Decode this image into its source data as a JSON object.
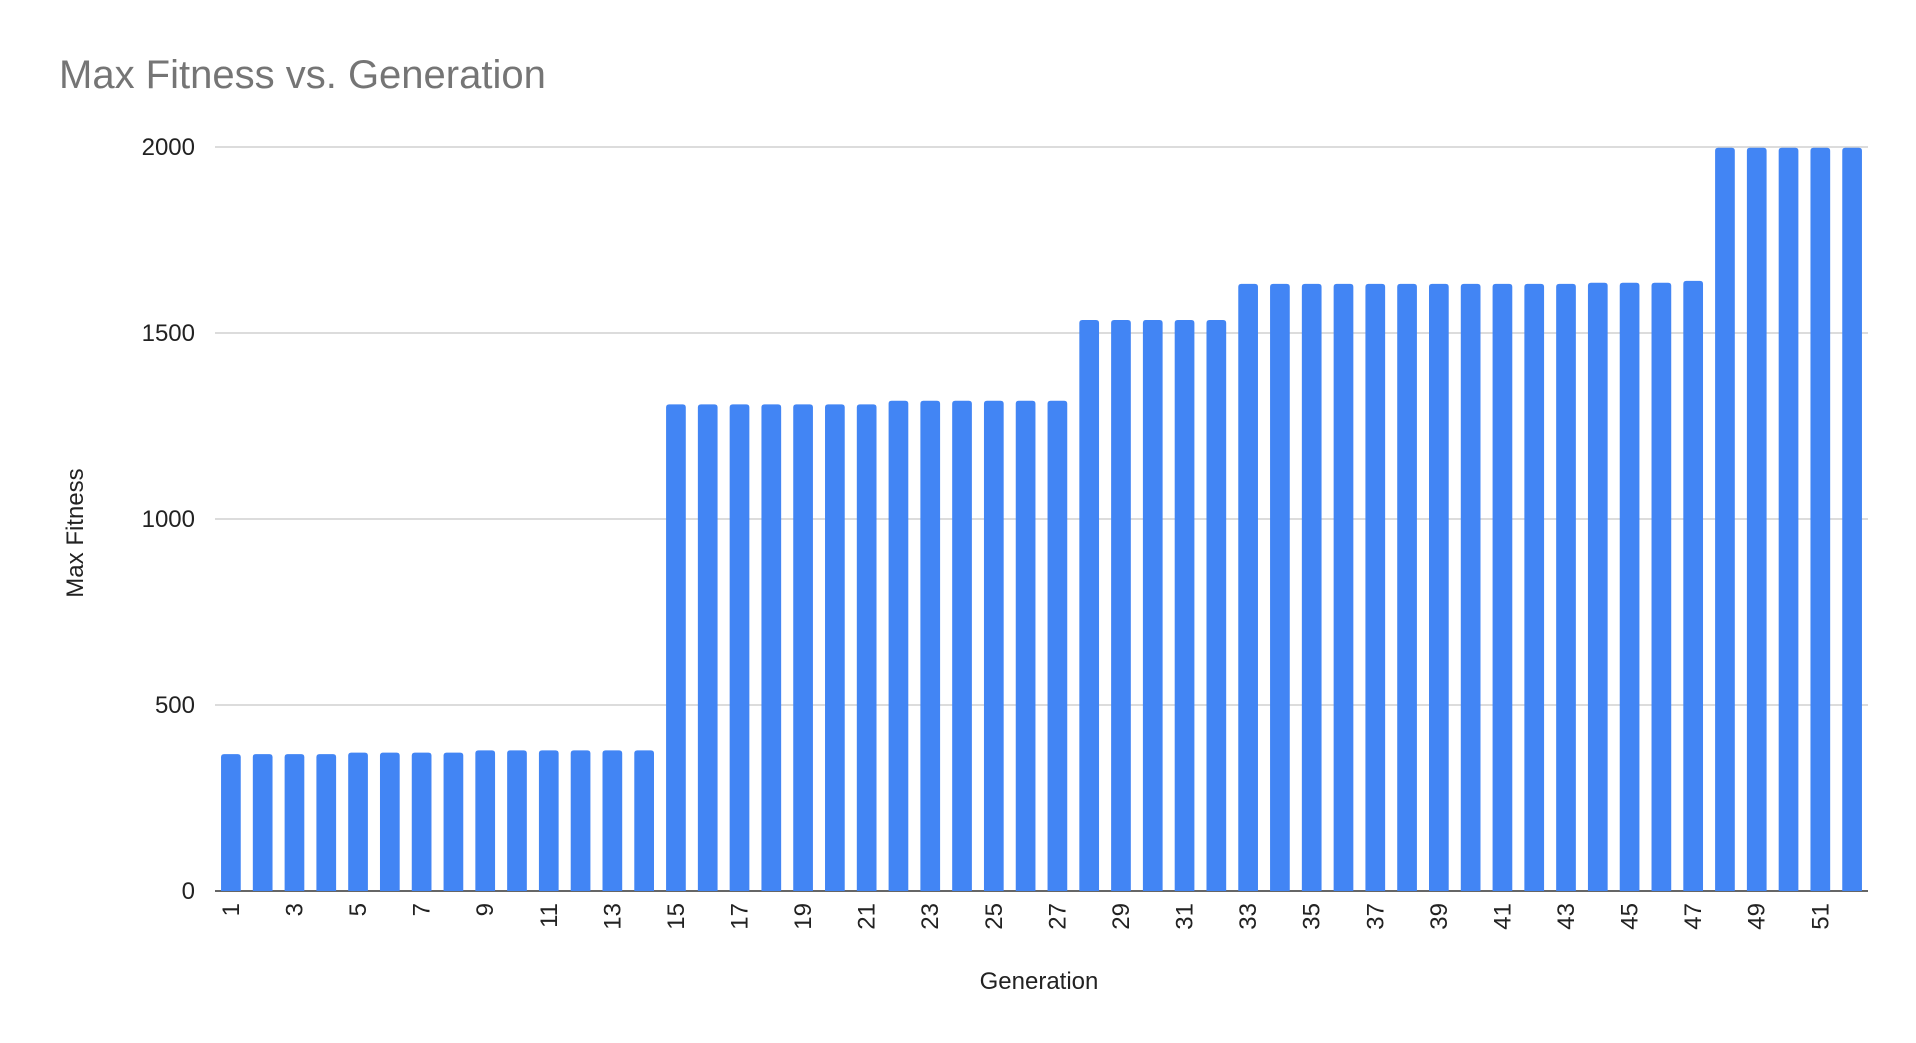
{
  "chart_data": {
    "type": "bar",
    "title": "Max Fitness vs. Generation",
    "xlabel": "Generation",
    "ylabel": "Max Fitness",
    "ylim": [
      0,
      2000
    ],
    "yticks": [
      0,
      500,
      1000,
      1500,
      2000
    ],
    "grid": true,
    "legend": "none",
    "bar_color": "#4285F4",
    "categories": [
      "1",
      "2",
      "3",
      "4",
      "5",
      "6",
      "7",
      "8",
      "9",
      "10",
      "11",
      "12",
      "13",
      "14",
      "15",
      "16",
      "17",
      "18",
      "19",
      "20",
      "21",
      "22",
      "23",
      "24",
      "25",
      "26",
      "27",
      "28",
      "29",
      "30",
      "31",
      "32",
      "33",
      "34",
      "35",
      "36",
      "37",
      "38",
      "39",
      "40",
      "41",
      "42",
      "43",
      "44",
      "45",
      "46",
      "47",
      "48",
      "49",
      "50",
      "51",
      "52"
    ],
    "x_tick_labels": [
      "1",
      "3",
      "5",
      "7",
      "9",
      "11",
      "13",
      "15",
      "17",
      "19",
      "21",
      "23",
      "25",
      "27",
      "29",
      "31",
      "33",
      "35",
      "37",
      "39",
      "41",
      "43",
      "45",
      "47",
      "49",
      "51"
    ],
    "values": [
      368,
      368,
      368,
      368,
      372,
      372,
      372,
      372,
      378,
      378,
      378,
      378,
      378,
      378,
      1308,
      1308,
      1308,
      1308,
      1308,
      1308,
      1308,
      1318,
      1318,
      1318,
      1318,
      1318,
      1318,
      1535,
      1535,
      1535,
      1535,
      1535,
      1632,
      1632,
      1632,
      1632,
      1632,
      1632,
      1632,
      1632,
      1632,
      1632,
      1632,
      1635,
      1635,
      1635,
      1640,
      1998,
      1998,
      1998,
      1998,
      1998
    ]
  }
}
